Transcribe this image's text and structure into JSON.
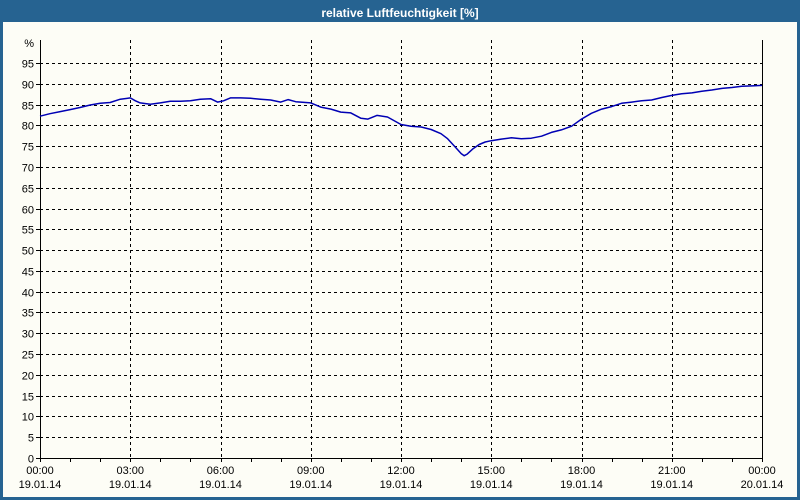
{
  "window": {
    "title": "relative Luftfeuchtigkeit [%]"
  },
  "colors": {
    "titlebar_bg": "#266391",
    "titlebar_text": "#ffffff",
    "window_border": "#266391",
    "background": "#fdfdf6",
    "line": "#0000b4",
    "grid": "#000000",
    "axis_text": "#000000"
  },
  "chart_data": {
    "type": "line",
    "title": "relative Luftfeuchtigkeit [%]",
    "xlabel": "",
    "ylabel": "%",
    "ylim": [
      0,
      100
    ],
    "y_tick_step": 5,
    "y_ticks": [
      0,
      5,
      10,
      15,
      20,
      25,
      30,
      35,
      40,
      45,
      50,
      55,
      60,
      65,
      70,
      75,
      80,
      85,
      90,
      95
    ],
    "grid": "dashed",
    "legend_position": "none",
    "x_ticks": [
      {
        "h": 0,
        "time": "00:00",
        "date": "19.01.14"
      },
      {
        "h": 3,
        "time": "03:00",
        "date": "19.01.14"
      },
      {
        "h": 6,
        "time": "06:00",
        "date": "19.01.14"
      },
      {
        "h": 9,
        "time": "09:00",
        "date": "19.01.14"
      },
      {
        "h": 12,
        "time": "12:00",
        "date": "19.01.14"
      },
      {
        "h": 15,
        "time": "15:00",
        "date": "19.01.14"
      },
      {
        "h": 18,
        "time": "18:00",
        "date": "19.01.14"
      },
      {
        "h": 21,
        "time": "21:00",
        "date": "19.01.14"
      },
      {
        "h": 24,
        "time": "00:00",
        "date": "20.01.14"
      }
    ],
    "series": [
      {
        "name": "relative Luftfeuchtigkeit [%]",
        "color": "#0000b4",
        "points": [
          [
            0.0,
            82.2
          ],
          [
            0.33,
            82.8
          ],
          [
            0.67,
            83.3
          ],
          [
            1.0,
            83.8
          ],
          [
            1.33,
            84.3
          ],
          [
            1.67,
            84.9
          ],
          [
            2.0,
            85.3
          ],
          [
            2.33,
            85.5
          ],
          [
            2.67,
            86.3
          ],
          [
            3.0,
            86.6
          ],
          [
            3.17,
            85.9
          ],
          [
            3.33,
            85.4
          ],
          [
            3.67,
            85.1
          ],
          [
            4.0,
            85.4
          ],
          [
            4.33,
            85.8
          ],
          [
            4.67,
            85.8
          ],
          [
            5.0,
            85.9
          ],
          [
            5.33,
            86.3
          ],
          [
            5.67,
            86.4
          ],
          [
            5.9,
            85.6
          ],
          [
            6.1,
            85.9
          ],
          [
            6.33,
            86.6
          ],
          [
            6.67,
            86.6
          ],
          [
            7.0,
            86.5
          ],
          [
            7.33,
            86.3
          ],
          [
            7.67,
            86.1
          ],
          [
            8.0,
            85.6
          ],
          [
            8.25,
            86.2
          ],
          [
            8.5,
            85.7
          ],
          [
            9.0,
            85.4
          ],
          [
            9.33,
            84.4
          ],
          [
            9.67,
            83.9
          ],
          [
            10.0,
            83.2
          ],
          [
            10.33,
            83.0
          ],
          [
            10.67,
            81.7
          ],
          [
            10.9,
            81.5
          ],
          [
            11.2,
            82.4
          ],
          [
            11.55,
            82.0
          ],
          [
            12.0,
            80.2
          ],
          [
            12.33,
            79.8
          ],
          [
            12.67,
            79.6
          ],
          [
            13.0,
            79.0
          ],
          [
            13.33,
            78.0
          ],
          [
            13.55,
            76.8
          ],
          [
            13.8,
            74.8
          ],
          [
            14.0,
            73.2
          ],
          [
            14.1,
            72.7
          ],
          [
            14.2,
            73.1
          ],
          [
            14.4,
            74.4
          ],
          [
            14.6,
            75.4
          ],
          [
            14.8,
            76.0
          ],
          [
            15.0,
            76.3
          ],
          [
            15.33,
            76.7
          ],
          [
            15.67,
            77.0
          ],
          [
            16.0,
            76.8
          ],
          [
            16.33,
            76.9
          ],
          [
            16.67,
            77.4
          ],
          [
            17.0,
            78.3
          ],
          [
            17.33,
            78.9
          ],
          [
            17.67,
            79.8
          ],
          [
            18.0,
            81.5
          ],
          [
            18.33,
            82.9
          ],
          [
            18.67,
            83.9
          ],
          [
            19.0,
            84.5
          ],
          [
            19.33,
            85.3
          ],
          [
            19.67,
            85.6
          ],
          [
            20.0,
            85.9
          ],
          [
            20.33,
            86.1
          ],
          [
            20.67,
            86.7
          ],
          [
            21.0,
            87.2
          ],
          [
            21.33,
            87.6
          ],
          [
            21.67,
            87.8
          ],
          [
            22.0,
            88.2
          ],
          [
            22.33,
            88.5
          ],
          [
            22.67,
            88.9
          ],
          [
            23.0,
            89.1
          ],
          [
            23.33,
            89.4
          ],
          [
            23.67,
            89.5
          ],
          [
            24.0,
            89.6
          ]
        ]
      }
    ]
  }
}
